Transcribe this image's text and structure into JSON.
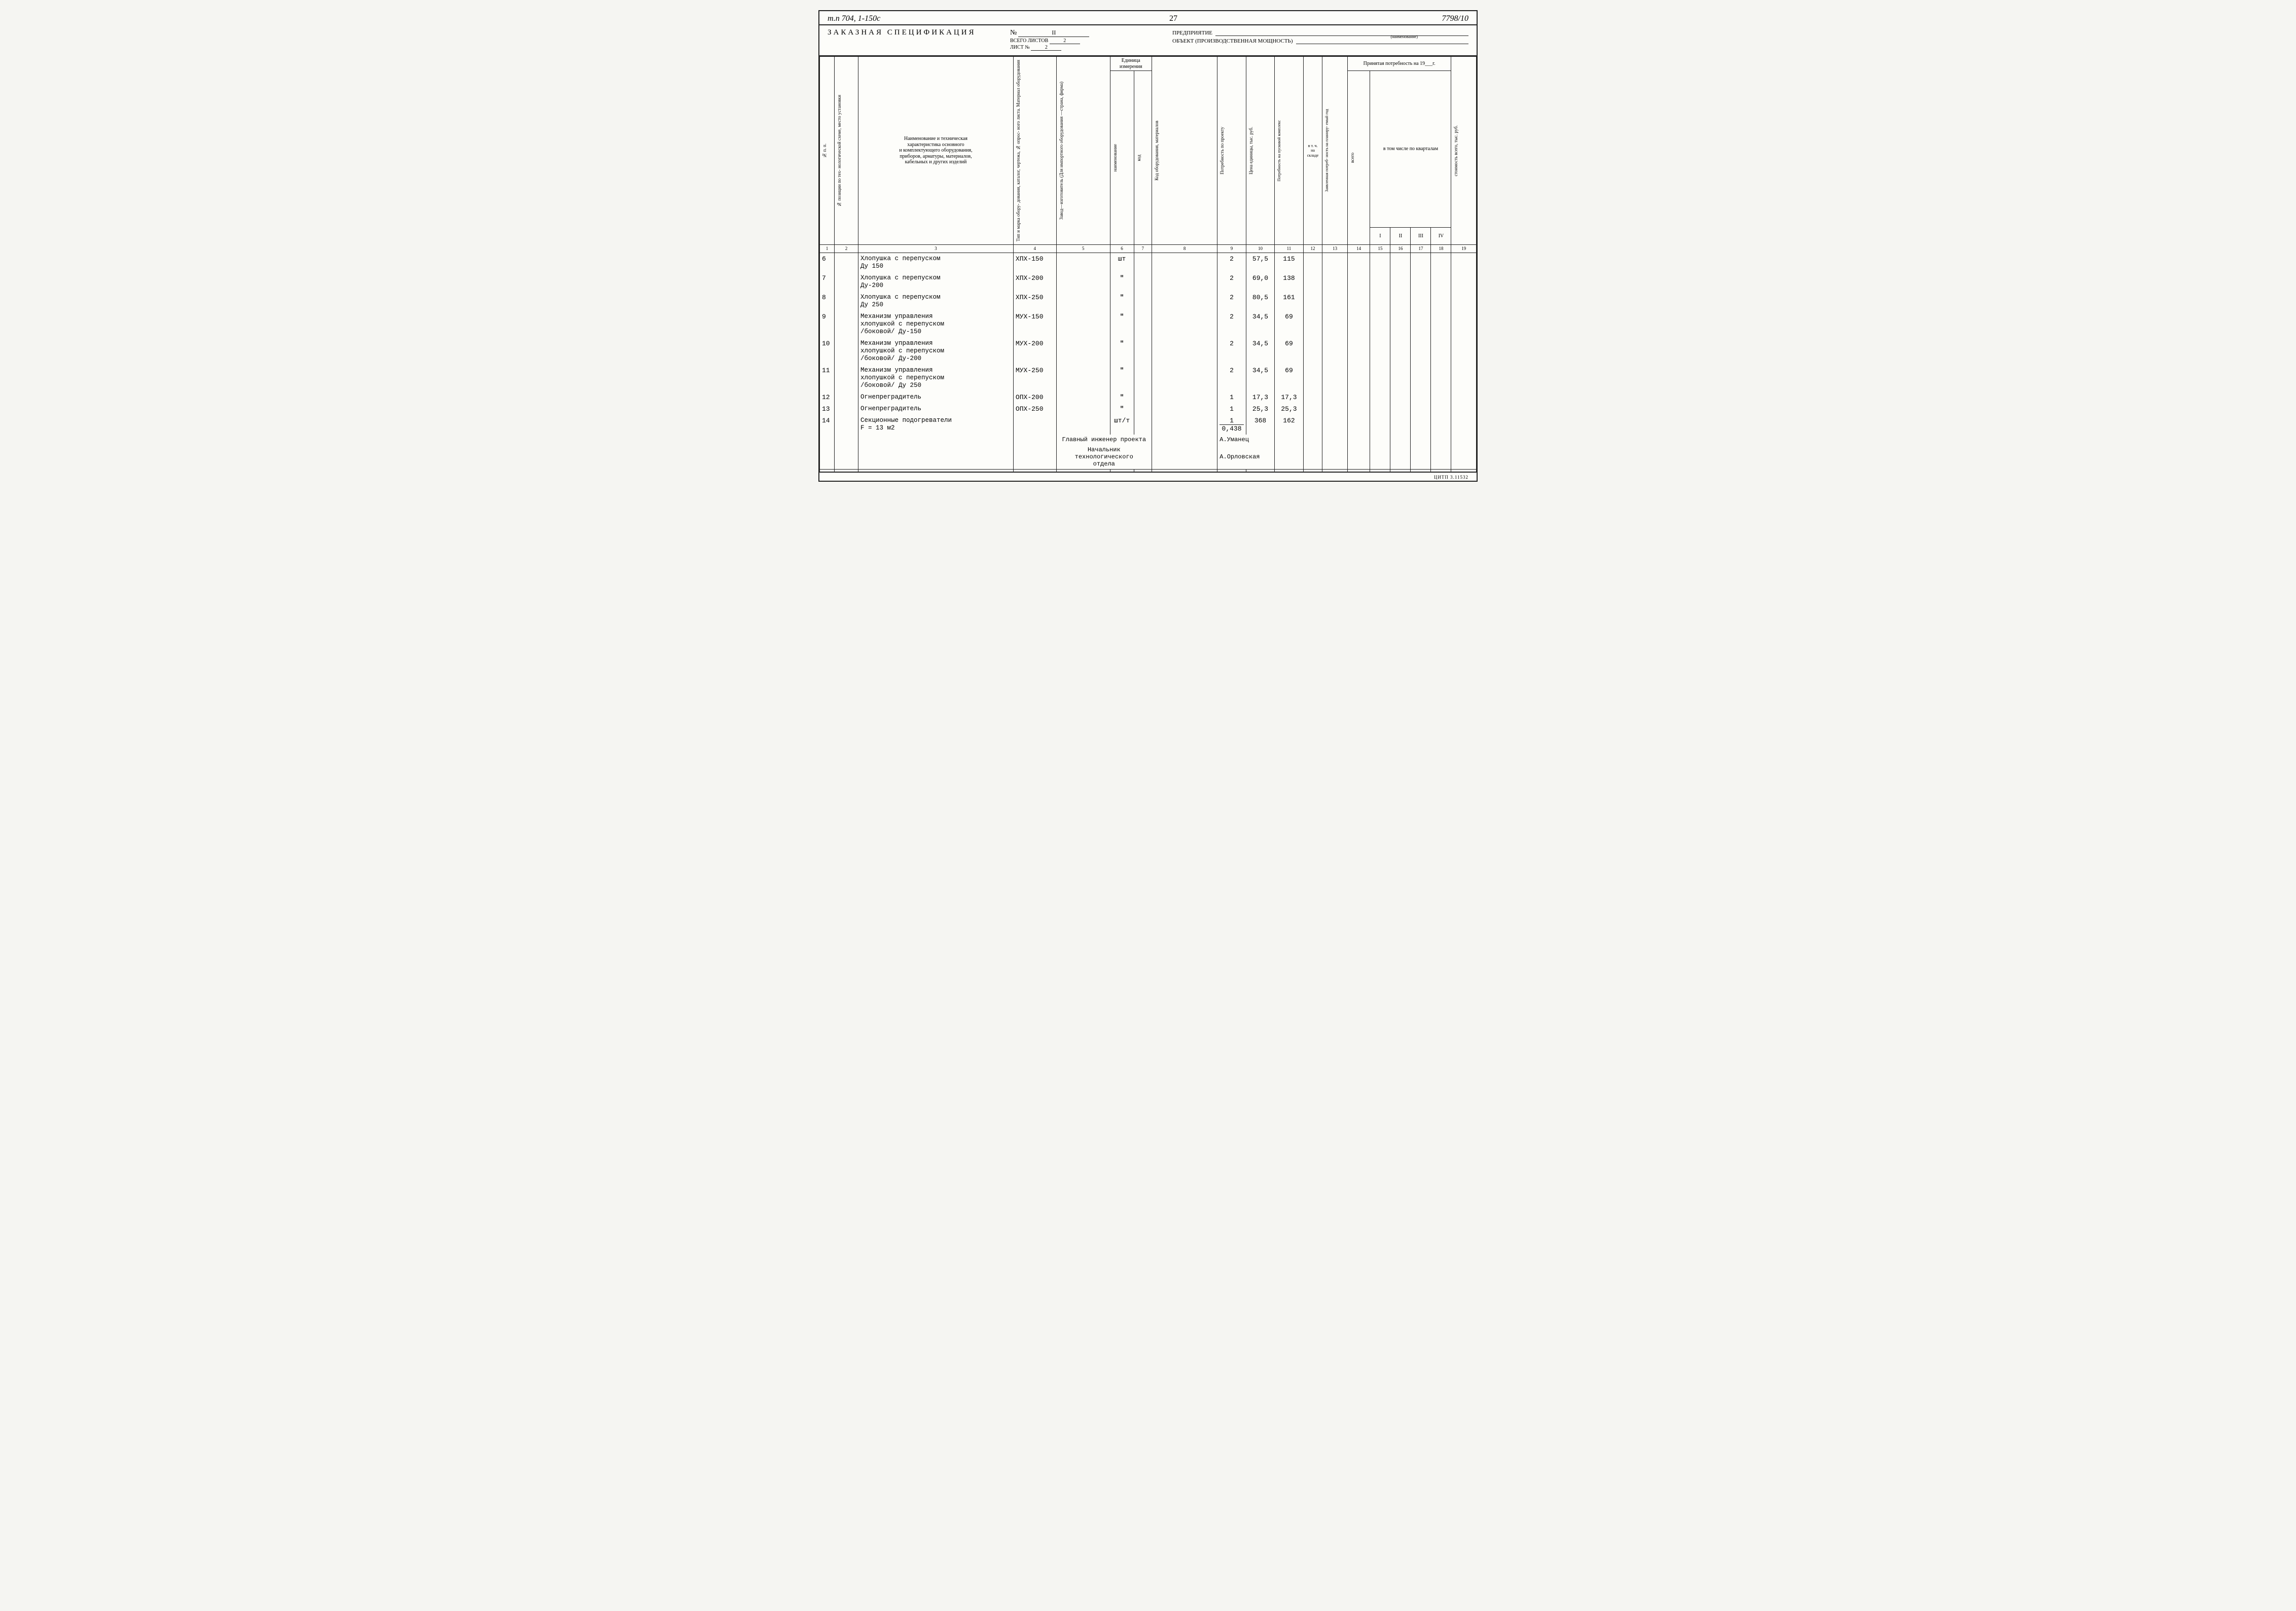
{
  "header": {
    "top_left": "т.п 704, 1-150с",
    "page_number": "27",
    "top_right": "7798/10",
    "title": "ЗАКАЗНАЯ СПЕЦИФИКАЦИЯ",
    "spec_no_label": "№",
    "spec_no": "II",
    "total_sheets_label": "ВСЕГО ЛИСТОВ",
    "total_sheets": "2",
    "sheet_no_label": "ЛИСТ №",
    "sheet_no": "2",
    "enterprise_label": "ПРЕДПРИЯТИЕ",
    "enterprise_note": "(наименование)",
    "object_label": "ОБЪЕКТ (ПРОИЗВОДСТВЕННАЯ МОЩНОСТЬ)"
  },
  "columns": {
    "c1": "№ п. п.",
    "c2": "№ позиции по тех-\nнологической схеме,\nместо установки",
    "c3": "Наименование и техническая\nхарактеристика основного\nи комплектующего оборудования,\nприборов, арматуры, материалов,\nкабельных и других изделий",
    "c4": "Тип и марка обору-\nдования, каталог,\nчертежа, № опрос-\nного листа. Материал\nоборудования",
    "c5": "Завод—изготовитель\n(Для импортного\nоборудования\n—страна, фирма)",
    "c6_group": "Единица\nизмерения",
    "c6": "наименование",
    "c7": "код",
    "c8": "Код оборудования,\nматериалов",
    "c9": "Потребность\nпо проекту",
    "c10": "Цена единицы,\nтыс. руб.",
    "c11": "Потребность\nна пусковой комплекс",
    "c12": "в т. ч.\nна\nскладе",
    "c13": "Заявленная потреб-\nность на планиру-\nемый год",
    "c14_18_group": "Принятая потребность на 19___г.",
    "c14_18_sub": "в том числе по кварталам",
    "c14": "всего",
    "c15": "I",
    "c16": "II",
    "c17": "III",
    "c18": "IV",
    "c19": "стоимость\nвсего, тыс. руб."
  },
  "colnums": [
    "1",
    "2",
    "3",
    "4",
    "5",
    "6",
    "7",
    "8",
    "9",
    "10",
    "11",
    "12",
    "13",
    "14",
    "15",
    "16",
    "17",
    "18",
    "19"
  ],
  "rows": [
    {
      "n": "6",
      "desc": "Хлопушка с перепуском\nДу 150",
      "type": "ХПХ-150",
      "unit": "шт",
      "qty": "2",
      "price": "57,5",
      "need": "115"
    },
    {
      "n": "7",
      "desc": "Хлопушка с перепуском\nДу-200",
      "type": "ХПХ-200",
      "unit": "\"",
      "qty": "2",
      "price": "69,0",
      "need": "138"
    },
    {
      "n": "8",
      "desc": "Хлопушка с перепуском\nДу 250",
      "type": "ХПХ-250",
      "unit": "\"",
      "qty": "2",
      "price": "80,5",
      "need": "161"
    },
    {
      "n": "9",
      "desc": "Механизм управления\nхлопушкой с перепуском\n/боковой/ Ду-150",
      "type": "МУХ-150",
      "unit": "\"",
      "qty": "2",
      "price": "34,5",
      "need": "69"
    },
    {
      "n": "10",
      "desc": "Механизм управления\nхлопушкой с перепуском\n/боковой/ Ду-200",
      "type": "МУХ-200",
      "unit": "\"",
      "qty": "2",
      "price": "34,5",
      "need": "69"
    },
    {
      "n": "11",
      "desc": "Механизм управления\nхлопушкой с перепуском\n/боковой/ Ду 250",
      "type": "МУХ-250",
      "unit": "\"",
      "qty": "2",
      "price": "34,5",
      "need": "69"
    },
    {
      "n": "12",
      "desc": "Огнепреградитель",
      "type": "ОПХ-200",
      "unit": "\"",
      "qty": "1",
      "price": "17,3",
      "need": "17,3"
    },
    {
      "n": "13",
      "desc": "Огнепреградитель",
      "type": "ОПХ-250",
      "unit": "\"",
      "qty": "1",
      "price": "25,3",
      "need": "25,3"
    },
    {
      "n": "14",
      "desc": "Секционные подогреватели\nF = 13 м2",
      "type": "",
      "unit": "шт/т",
      "qty_frac_top": "1",
      "qty_frac_bot": "0,438",
      "price": "368",
      "need": "162"
    }
  ],
  "signatures": {
    "s1_title": "Главный инженер проекта",
    "s1_name": "А.Уманец",
    "s2_title": "Начальник технологического\nотдела",
    "s2_name": "А.Орловская"
  },
  "footer": "ЦИТП 3.11532"
}
